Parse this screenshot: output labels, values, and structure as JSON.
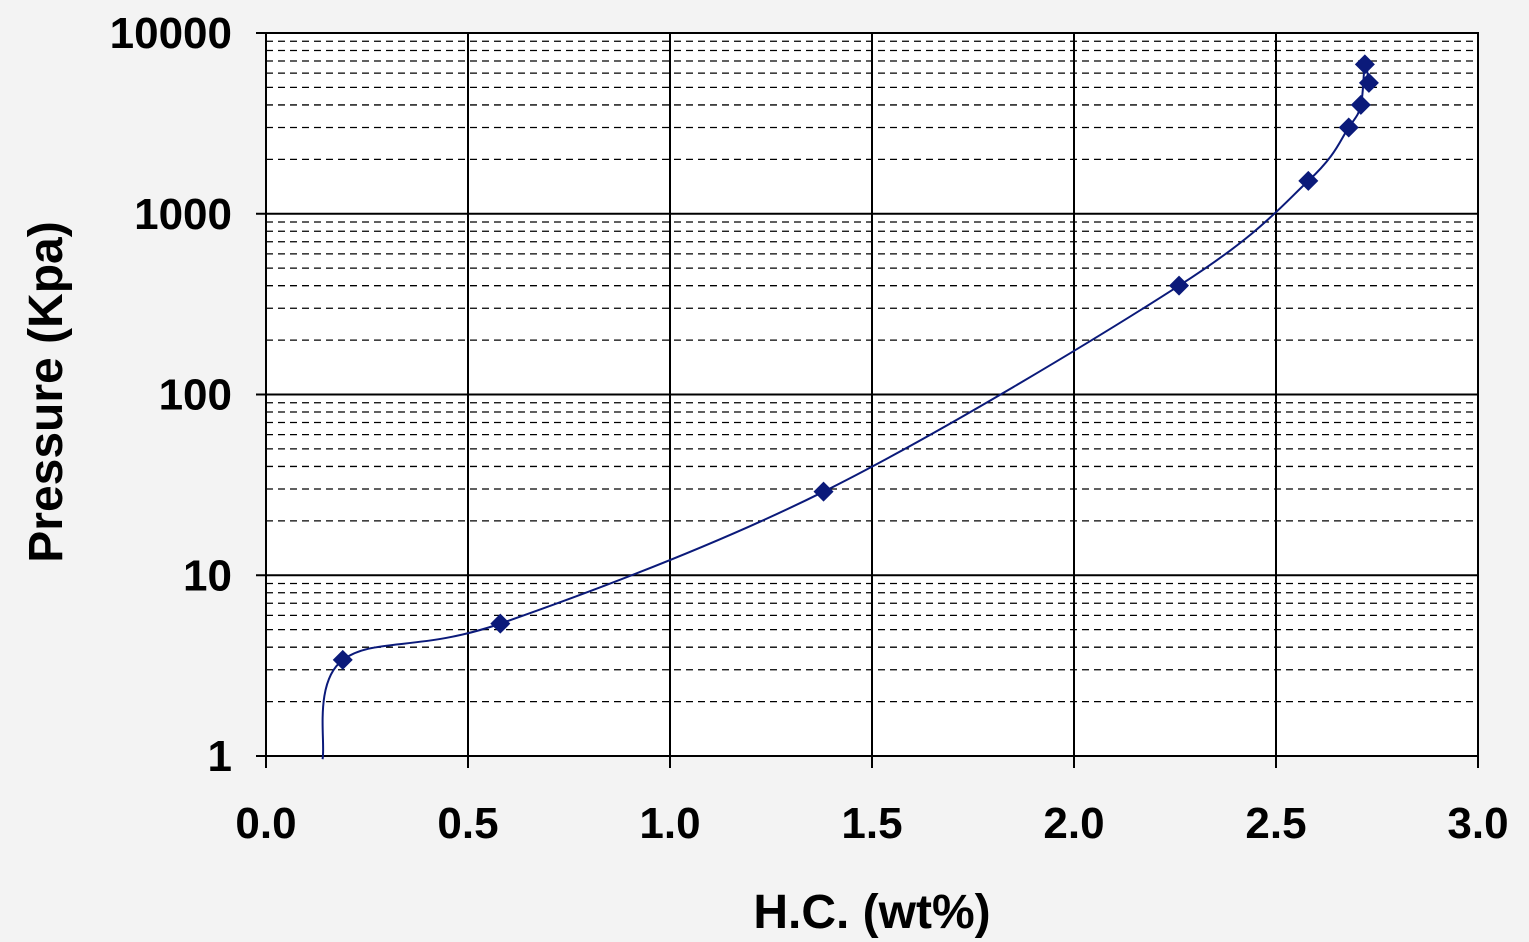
{
  "chart_data": {
    "type": "scatter",
    "title": "",
    "xlabel": "H.C. (wt%)",
    "ylabel": "Pressure (Kpa)",
    "x_scale": "linear",
    "y_scale": "log",
    "xlim": [
      0,
      3
    ],
    "ylim": [
      1,
      10000
    ],
    "x_ticks": [
      "0.0",
      "0.5",
      "1.0",
      "1.5",
      "2.0",
      "2.5",
      "3.0"
    ],
    "y_ticks": [
      "1",
      "10",
      "100",
      "1000",
      "10000"
    ],
    "grid": {
      "major": true,
      "minor": true,
      "minor_style": "dashed"
    },
    "legend": "none",
    "series": [
      {
        "marker": "diamond",
        "line": "smoothed",
        "color": "#0b1a7a",
        "x": [
          0.19,
          0.58,
          1.38,
          2.26,
          2.58,
          2.68,
          2.71,
          2.72,
          2.73
        ],
        "y": [
          3.4,
          5.4,
          29,
          400,
          1520,
          3000,
          4000,
          6700,
          5300
        ]
      }
    ],
    "curve_extension": {
      "x_start": 0.14,
      "y_start": 0.96
    }
  }
}
